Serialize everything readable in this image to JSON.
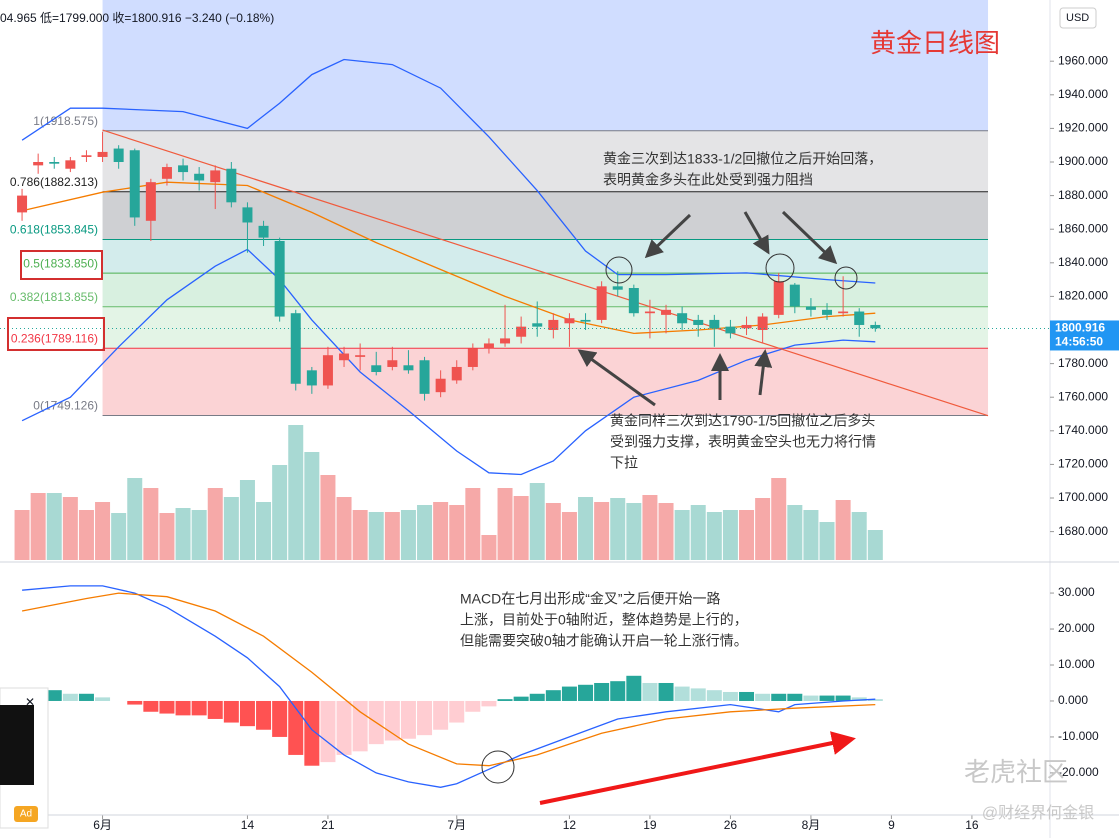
{
  "chart_data": [
    {
      "type": "candlestick",
      "title": "黄金日线图",
      "info": "04.965 低=1799.000 收=1800.916 −3.240 (−0.18%)",
      "currency": "USD",
      "last_price": {
        "value": 1800.916,
        "label": "1800.916"
      },
      "countdown": "14:56:50",
      "xlim": [
        -1.37,
        63.85
      ],
      "ylim": [
        1663.1,
        1996.43
      ],
      "yticks": [
        {
          "value": 1680,
          "label": "1680.000"
        },
        {
          "value": 1700,
          "label": "1700.000"
        },
        {
          "value": 1720,
          "label": "1720.000"
        },
        {
          "value": 1740,
          "label": "1740.000"
        },
        {
          "value": 1760,
          "label": "1760.000"
        },
        {
          "value": 1780,
          "label": "1780.000"
        },
        {
          "value": 1800,
          "label": "1800.000"
        },
        {
          "value": 1820,
          "label": "1820.000"
        },
        {
          "value": 1840,
          "label": "1840.000"
        },
        {
          "value": 1860,
          "label": "1860.000"
        },
        {
          "value": 1880,
          "label": "1880.000"
        },
        {
          "value": 1900,
          "label": "1900.000"
        },
        {
          "value": 1920,
          "label": "1920.000"
        },
        {
          "value": 1940,
          "label": "1940.000"
        },
        {
          "value": 1960,
          "label": "1960.000"
        }
      ],
      "xticks": [
        {
          "value": 5,
          "label": "6月"
        },
        {
          "value": 14,
          "label": "14"
        },
        {
          "value": 19,
          "label": "21"
        },
        {
          "value": 27,
          "label": "7月"
        },
        {
          "value": 34,
          "label": "12"
        },
        {
          "value": 39,
          "label": "19"
        },
        {
          "value": 44,
          "label": "26"
        },
        {
          "value": 49,
          "label": "8月"
        },
        {
          "value": 54,
          "label": "9"
        },
        {
          "value": 59,
          "label": "16"
        }
      ],
      "up_color": "#ef5350",
      "down_color": "#26a69a",
      "open": [
        1870,
        1898,
        1900,
        1896,
        1903,
        1903,
        1908,
        1907,
        1865,
        1890,
        1898,
        1893,
        1888,
        1896,
        1873,
        1862,
        1853,
        1810,
        1776,
        1767,
        1782,
        1784,
        1779,
        1778,
        1779,
        1782,
        1763,
        1770,
        1778,
        1789,
        1792,
        1796,
        1804,
        1800,
        1804,
        1806,
        1806,
        1826,
        1825,
        1810,
        1809,
        1810,
        1806,
        1806,
        1802,
        1801,
        1800,
        1809,
        1827,
        1814,
        1812,
        1810,
        1811,
        1803
      ],
      "high": [
        1884,
        1905,
        1903,
        1903,
        1907,
        1918,
        1910,
        1908,
        1890,
        1899,
        1902,
        1897,
        1898,
        1900,
        1876,
        1865,
        1855,
        1812,
        1778,
        1790,
        1790,
        1792,
        1787,
        1790,
        1788,
        1784,
        1776,
        1782,
        1792,
        1795,
        1815,
        1808,
        1817,
        1810,
        1810,
        1810,
        1829,
        1835,
        1827,
        1818,
        1815,
        1814,
        1809,
        1809,
        1806,
        1808,
        1810,
        1834,
        1828,
        1819,
        1816,
        1832,
        1813,
        1805
      ],
      "low": [
        1865,
        1893,
        1896,
        1894,
        1900,
        1900,
        1896,
        1862,
        1853,
        1886,
        1889,
        1883,
        1872,
        1873,
        1846,
        1850,
        1805,
        1764,
        1762,
        1765,
        1778,
        1776,
        1773,
        1776,
        1774,
        1758,
        1760,
        1768,
        1776,
        1786,
        1790,
        1792,
        1796,
        1795,
        1790,
        1800,
        1804,
        1820,
        1808,
        1795,
        1798,
        1800,
        1796,
        1790,
        1795,
        1797,
        1792,
        1807,
        1810,
        1808,
        1806,
        1808,
        1796,
        1799
      ],
      "close": [
        1880,
        1900,
        1899,
        1901,
        1904,
        1906,
        1900,
        1867,
        1888,
        1897,
        1894,
        1889,
        1895,
        1876,
        1864,
        1855,
        1808,
        1768,
        1767,
        1785,
        1786,
        1785,
        1775,
        1782,
        1776,
        1762,
        1771,
        1778,
        1789,
        1792,
        1795,
        1802,
        1802,
        1806,
        1807,
        1805,
        1826,
        1824,
        1810,
        1811,
        1812,
        1804,
        1803,
        1801,
        1798,
        1803,
        1808,
        1829,
        1814,
        1812,
        1809,
        1811,
        1803,
        1801
      ],
      "volume_lim": [
        0,
        140
      ],
      "volume": [
        50,
        67,
        67,
        63,
        50,
        58,
        47,
        82,
        72,
        47,
        52,
        50,
        72,
        63,
        80,
        58,
        95,
        135,
        108,
        85,
        63,
        50,
        48,
        48,
        50,
        55,
        58,
        55,
        72,
        25,
        72,
        64,
        77,
        57,
        48,
        63,
        58,
        62,
        57,
        65,
        57,
        50,
        55,
        48,
        50,
        50,
        62,
        82,
        55,
        50,
        38,
        60,
        48,
        30
      ],
      "bands": [
        {
          "color": "#2962ff",
          "x": [
            0,
            3,
            5,
            10,
            14,
            16,
            18,
            20,
            23,
            26,
            29,
            32,
            35,
            37,
            40,
            45,
            50,
            53
          ],
          "values": [
            1913,
            1932,
            1932,
            1930,
            1920,
            1935,
            1952,
            1961,
            1958,
            1944,
            1915,
            1883,
            1847,
            1833,
            1833,
            1834,
            1830,
            1828
          ]
        },
        {
          "color": "#f57c00",
          "x": [
            0,
            5,
            9,
            14,
            18,
            22,
            26,
            30,
            34,
            38,
            42,
            46,
            50,
            53
          ],
          "values": [
            1871,
            1882,
            1888,
            1886,
            1870,
            1852,
            1836,
            1820,
            1806,
            1798,
            1800,
            1803,
            1808,
            1810
          ]
        },
        {
          "color": "#2962ff",
          "x": [
            0,
            3,
            6,
            9,
            12,
            14,
            16,
            18,
            21,
            24,
            27,
            29,
            31,
            33,
            35,
            38,
            42,
            45,
            48,
            51,
            53
          ],
          "values": [
            1746,
            1760,
            1790,
            1818,
            1838,
            1848,
            1830,
            1806,
            1775,
            1752,
            1728,
            1715,
            1714,
            1722,
            1740,
            1760,
            1770,
            1782,
            1791,
            1794,
            1793
          ]
        }
      ],
      "fib": {
        "x": [
          5,
          60
        ],
        "top_fill": "rgba(41,98,255,0.22)",
        "levels": [
          {
            "value": 1918.575,
            "label": "1(1918.575)",
            "color": "#787b86",
            "fill": "#e4e4e6"
          },
          {
            "value": 1882.313,
            "label": "0.786(1882.313)",
            "color": "#222222",
            "fill": "#cfd0d3"
          },
          {
            "value": 1853.845,
            "label": "0.618(1853.845)",
            "color": "#089981",
            "fill": "#d3ecec"
          },
          {
            "value": 1833.85,
            "label": "0.5(1833.850)",
            "color": "#4caf50",
            "fill": "#d8f0e0"
          },
          {
            "value": 1813.855,
            "label": "0.382(1813.855)",
            "color": "#66bb6a",
            "fill": "#e3f4e6"
          },
          {
            "value": 1789.116,
            "label": "0.236(1789.116)",
            "color": "#f23645",
            "fill": "#fbd3d5"
          },
          {
            "value": 1749.126,
            "label": "0(1749.126)",
            "color": "#787b86",
            "fill": null
          }
        ]
      },
      "trendline": {
        "color": "#f05a3c",
        "x": [
          5,
          60
        ],
        "values": [
          1919,
          1749
        ]
      },
      "annotations": [
        {
          "lines": [
            "黄金三次到达1833-1/2回撤位之后开始回落，",
            "表明黄金多头在此处受到强力阻挡"
          ]
        },
        {
          "lines": [
            "黄金同样三次到达1790-1/5回撤位之后多头",
            "受到强力支撑，表明黄金空头也无力将行情",
            "下拉"
          ]
        }
      ]
    },
    {
      "type": "macd",
      "xlim": [
        -1.37,
        63.85
      ],
      "ylim": [
        -31.7,
        37.8
      ],
      "yticks": [
        {
          "value": 30,
          "label": "30.000"
        },
        {
          "value": 20,
          "label": "20.000"
        },
        {
          "value": 10,
          "label": "10.000"
        },
        {
          "value": 0,
          "label": "0.000"
        },
        {
          "value": -10,
          "label": "-10.000"
        },
        {
          "value": -20,
          "label": "-20.000"
        }
      ],
      "histogram": [
        3,
        3,
        3,
        2,
        2,
        1,
        0,
        -1,
        -3,
        -3.5,
        -4,
        -4,
        -5,
        -6,
        -7,
        -8,
        -10,
        -15,
        -18,
        -17,
        -15,
        -14,
        -12,
        -11,
        -10.5,
        -9.5,
        -8,
        -6,
        -3,
        -1.5,
        0.5,
        1.2,
        2,
        3,
        4,
        4.5,
        5,
        5.5,
        7,
        5,
        5,
        4,
        3.5,
        3,
        2.5,
        2.5,
        2,
        2,
        2,
        1.5,
        1.5,
        1.5,
        1,
        0.5
      ],
      "lines": [
        {
          "color": "#2962ff",
          "x": [
            0,
            3,
            5,
            7,
            9,
            12,
            14,
            16,
            18,
            20,
            22,
            24,
            26,
            27,
            29,
            31,
            34,
            37,
            40,
            44,
            47,
            48,
            51,
            53
          ],
          "values": [
            30.8,
            32,
            32,
            30,
            26,
            18,
            12,
            4,
            -8,
            -15,
            -20,
            -22.5,
            -24,
            -23,
            -19,
            -15,
            -10,
            -5,
            -3,
            -1,
            -3,
            -1,
            0,
            0.5
          ]
        },
        {
          "color": "#f57c00",
          "x": [
            0,
            4,
            6,
            9,
            12,
            15,
            18,
            21,
            24,
            27,
            29,
            32,
            36,
            40,
            44,
            48,
            53
          ],
          "values": [
            25,
            28.5,
            30,
            29,
            25,
            18,
            8,
            -3,
            -12,
            -17.5,
            -18,
            -15,
            -9,
            -5,
            -3,
            -2,
            -1
          ]
        }
      ],
      "annotation": {
        "lines": [
          "MACD在七月出形成“金叉”之后便开始一路",
          "上涨，目前处于0轴附近，整体趋势是上行的，",
          "但能需要突破0轴才能确认开启一轮上涨行情。"
        ]
      }
    }
  ],
  "watermark": "老虎社区",
  "credit": "@财经界何金银",
  "ad": "Ad"
}
